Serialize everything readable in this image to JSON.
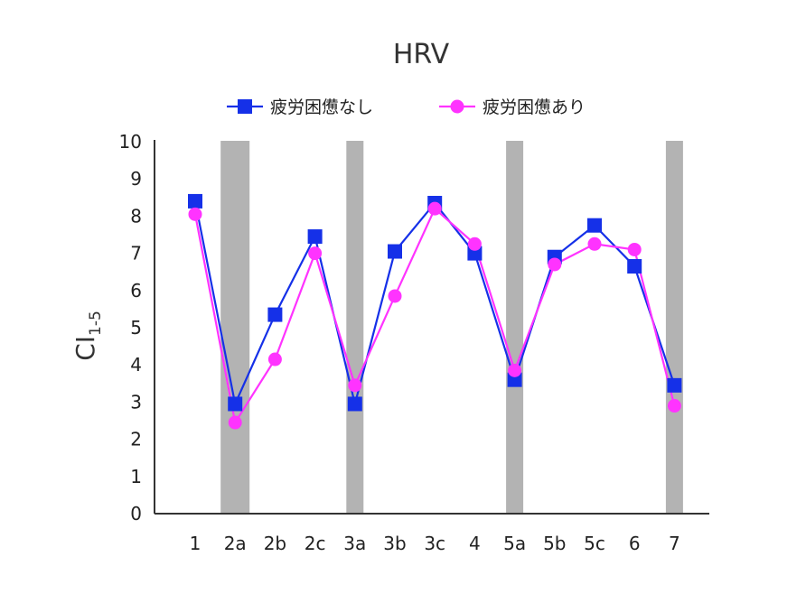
{
  "chart_data": {
    "type": "line",
    "title": "HRV",
    "ylabel": "CI",
    "ylabel_subscript": "1-5",
    "xlabel": "",
    "categories": [
      "1",
      "2a",
      "2b",
      "2c",
      "3a",
      "3b",
      "3c",
      "4",
      "5a",
      "5b",
      "5c",
      "6",
      "7"
    ],
    "ylim": [
      0,
      10
    ],
    "yticks": [
      "0",
      "1",
      "2",
      "3",
      "4",
      "5",
      "6",
      "7",
      "8",
      "9",
      "10"
    ],
    "highlight_categories": [
      "2a",
      "3a",
      "5a",
      "7"
    ],
    "highlight_color": "#b3b3b3",
    "legend_position": "top",
    "series": [
      {
        "name": "疲労困憊なし",
        "marker": "square",
        "color": "#1530e8",
        "values": [
          8.4,
          2.95,
          5.35,
          7.45,
          2.95,
          7.05,
          8.35,
          7.0,
          3.6,
          6.9,
          7.75,
          6.65,
          3.45
        ]
      },
      {
        "name": "疲労困憊あり",
        "marker": "circle",
        "color": "#ff33ff",
        "values": [
          8.05,
          2.45,
          4.15,
          7.0,
          3.45,
          5.85,
          8.2,
          7.25,
          3.85,
          6.7,
          7.25,
          7.1,
          2.9
        ]
      }
    ]
  }
}
